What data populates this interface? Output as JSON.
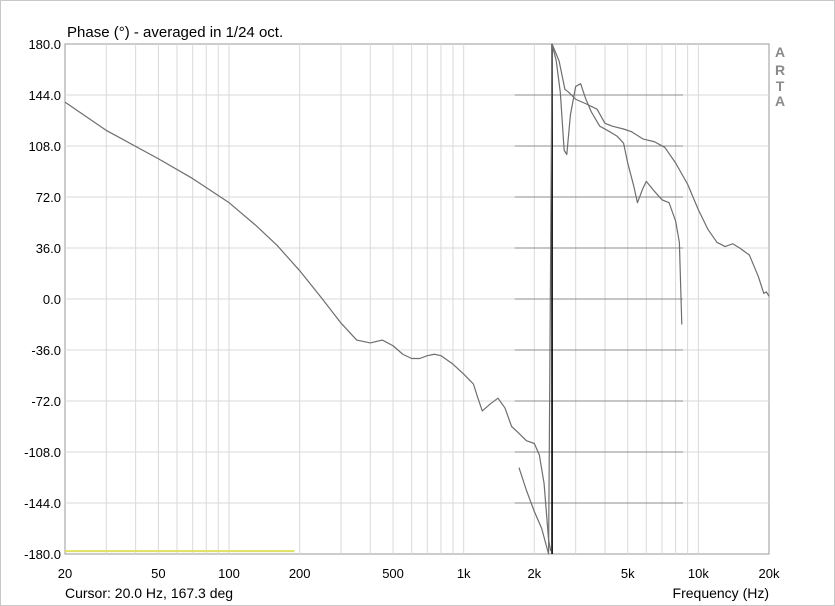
{
  "chart_data": {
    "type": "line",
    "title": "Phase (°) - averaged in 1/24 oct.",
    "xlabel": "Frequency (Hz)",
    "ylabel": "",
    "x_scale": "log",
    "xlim": [
      20,
      20000
    ],
    "ylim": [
      -180,
      180
    ],
    "grid": true,
    "y_ticks": [
      "180.0",
      "144.0",
      "108.0",
      "72.0",
      "36.0",
      "0.0",
      "-36.0",
      "-72.0",
      "-108.0",
      "-144.0",
      "-180.0"
    ],
    "x_ticks": [
      {
        "value": 20,
        "label": "20"
      },
      {
        "value": 50,
        "label": "50"
      },
      {
        "value": 100,
        "label": "100"
      },
      {
        "value": 200,
        "label": "200"
      },
      {
        "value": 500,
        "label": "500"
      },
      {
        "value": 1000,
        "label": "1k"
      },
      {
        "value": 2000,
        "label": "2k"
      },
      {
        "value": 5000,
        "label": "5k"
      },
      {
        "value": 10000,
        "label": "10k"
      },
      {
        "value": 20000,
        "label": "20k"
      }
    ],
    "series": [
      {
        "color": "#6e6e6e",
        "points": [
          [
            20,
            139
          ],
          [
            30,
            119
          ],
          [
            50,
            99
          ],
          [
            70,
            85
          ],
          [
            100,
            68
          ],
          [
            130,
            52
          ],
          [
            160,
            38
          ],
          [
            200,
            20
          ],
          [
            250,
            0
          ],
          [
            300,
            -17
          ],
          [
            350,
            -29
          ],
          [
            400,
            -31
          ],
          [
            450,
            -29
          ],
          [
            500,
            -33
          ],
          [
            550,
            -39
          ],
          [
            600,
            -42
          ],
          [
            650,
            -42
          ],
          [
            700,
            -40
          ],
          [
            750,
            -39
          ],
          [
            800,
            -40
          ],
          [
            900,
            -46
          ],
          [
            1000,
            -53
          ],
          [
            1100,
            -60
          ],
          [
            1150,
            -70
          ],
          [
            1200,
            -79
          ],
          [
            1300,
            -74
          ],
          [
            1400,
            -70
          ],
          [
            1500,
            -77
          ],
          [
            1600,
            -90
          ],
          [
            1700,
            -94
          ],
          [
            1850,
            -100
          ],
          [
            2000,
            -102
          ],
          [
            2100,
            -110
          ],
          [
            2200,
            -130
          ],
          [
            2300,
            -170
          ],
          [
            2350,
            -178
          ]
        ]
      },
      {
        "color": "#6e6e6e",
        "points": [
          [
            1720,
            -119
          ],
          [
            1850,
            -135
          ],
          [
            2000,
            -150
          ],
          [
            2150,
            -162
          ],
          [
            2300,
            -180
          ],
          [
            2380,
            180
          ],
          [
            2550,
            168
          ],
          [
            2700,
            148
          ],
          [
            2800,
            146
          ],
          [
            3000,
            141
          ],
          [
            3300,
            138
          ],
          [
            3700,
            134
          ],
          [
            4000,
            124
          ],
          [
            4300,
            122
          ],
          [
            4800,
            120
          ],
          [
            5200,
            118
          ],
          [
            5800,
            113
          ],
          [
            6500,
            111
          ],
          [
            7200,
            107
          ],
          [
            8000,
            96
          ],
          [
            9000,
            81
          ],
          [
            10000,
            63
          ],
          [
            11000,
            49
          ],
          [
            12000,
            40
          ],
          [
            13000,
            37
          ],
          [
            14000,
            39
          ],
          [
            15000,
            36
          ],
          [
            16500,
            31
          ],
          [
            18000,
            16
          ],
          [
            19000,
            4
          ],
          [
            19500,
            5
          ],
          [
            20000,
            2
          ]
        ]
      },
      {
        "color": "#6e6e6e",
        "points": [
          [
            2380,
            180
          ],
          [
            2480,
            168
          ],
          [
            2580,
            146
          ],
          [
            2680,
            105
          ],
          [
            2750,
            102
          ],
          [
            2850,
            130
          ],
          [
            3000,
            150
          ],
          [
            3150,
            152
          ],
          [
            3300,
            142
          ],
          [
            3500,
            132
          ],
          [
            3800,
            122
          ],
          [
            4200,
            118
          ],
          [
            4500,
            115
          ],
          [
            4800,
            110
          ],
          [
            5000,
            96
          ],
          [
            5300,
            80
          ],
          [
            5500,
            68
          ],
          [
            5800,
            78
          ],
          [
            6000,
            83
          ],
          [
            6500,
            76
          ],
          [
            7000,
            70
          ],
          [
            7500,
            68
          ],
          [
            8000,
            55
          ],
          [
            8300,
            40
          ],
          [
            8500,
            -18
          ]
        ]
      }
    ],
    "cursor_text": "Cursor: 20.0 Hz, 167.3 deg",
    "brand_letters": [
      "A",
      "R",
      "T",
      "A"
    ],
    "cursor_line_x": 2380,
    "reference_line": {
      "color": "#e0e060",
      "x_range": [
        20,
        190
      ],
      "y": -178
    }
  }
}
